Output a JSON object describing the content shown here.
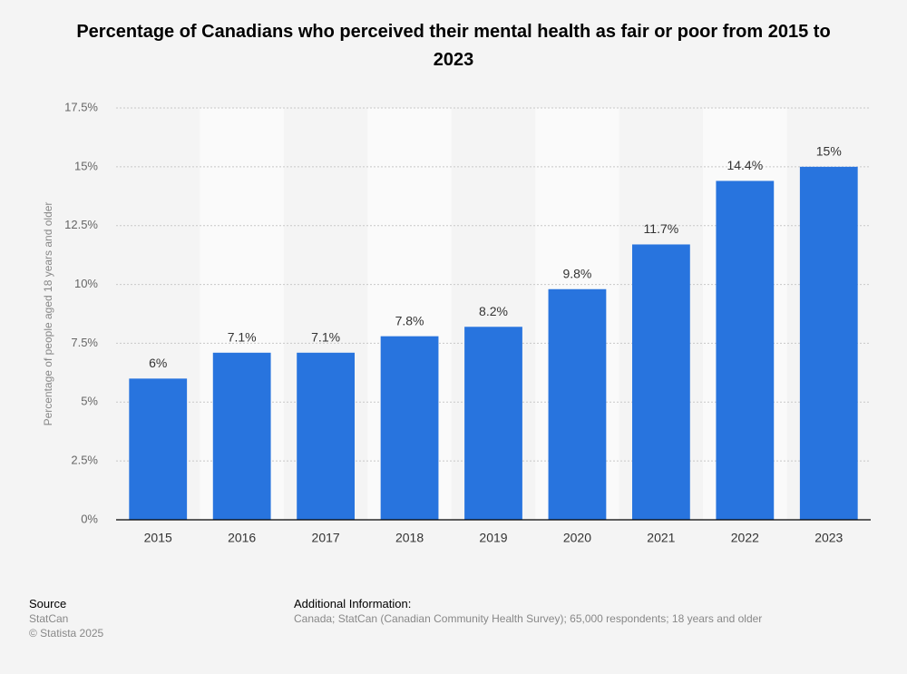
{
  "chart_data": {
    "type": "bar",
    "title": "Percentage of Canadians who perceived their mental health as fair or poor from 2015 to 2023",
    "y_label": "Percentage of people aged 18 years and older",
    "categories": [
      "2015",
      "2016",
      "2017",
      "2018",
      "2019",
      "2020",
      "2021",
      "2022",
      "2023"
    ],
    "values": [
      6,
      7.1,
      7.1,
      7.8,
      8.2,
      9.8,
      11.7,
      14.4,
      15
    ],
    "value_labels": [
      "6%",
      "7.1%",
      "7.1%",
      "7.8%",
      "8.2%",
      "9.8%",
      "11.7%",
      "14.4%",
      "15%"
    ],
    "color": "#2874de",
    "ylim": [
      0,
      17.5
    ],
    "yticks": [
      {
        "value": 0,
        "label": "0%"
      },
      {
        "value": 2.5,
        "label": "2.5%"
      },
      {
        "value": 5,
        "label": "5%"
      },
      {
        "value": 7.5,
        "label": "7.5%"
      },
      {
        "value": 10,
        "label": "10%"
      },
      {
        "value": 12.5,
        "label": "12.5%"
      },
      {
        "value": 15,
        "label": "15%"
      },
      {
        "value": 17.5,
        "label": "17.5%"
      }
    ],
    "grid": true
  },
  "footer": {
    "source_heading": "Source",
    "source": "StatCan",
    "copyright": "© Statista 2025",
    "info_heading": "Additional Information:",
    "info": "Canada; StatCan (Canadian Community Health Survey); 65,000 respondents; 18 years and older"
  }
}
